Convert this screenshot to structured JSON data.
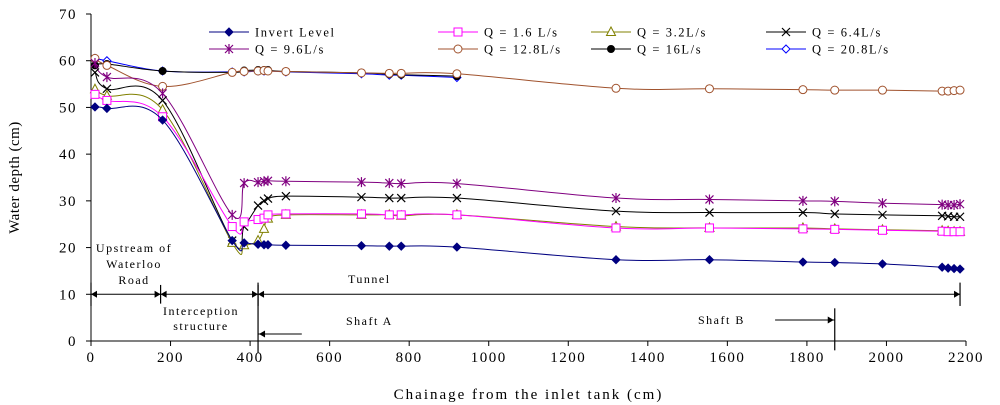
{
  "chart_data": {
    "type": "line",
    "xlabel": "Chainage from the inlet tank (cm)",
    "ylabel": "Water depth (cm)",
    "xlim": [
      0,
      2200
    ],
    "ylim": [
      0,
      70
    ],
    "xticks": [
      0,
      200,
      400,
      600,
      800,
      1000,
      1200,
      1400,
      1600,
      1800,
      2000,
      2200
    ],
    "yticks": [
      0,
      10,
      20,
      30,
      40,
      50,
      60,
      70
    ],
    "xtick_labels": [
      "0",
      "200",
      "400",
      "600",
      "800",
      "1000",
      "1200",
      "1400",
      "1600",
      "1800",
      "2000",
      "2200"
    ],
    "ytick_labels": [
      "0",
      "10",
      "20",
      "30",
      "40",
      "50",
      "60",
      "70"
    ],
    "grid": false,
    "legend_position": "top",
    "series": [
      {
        "name": "Invert Level",
        "color": "#000080",
        "marker": "filled-diamond",
        "x": [
          10,
          40,
          180,
          355,
          385,
          420,
          435,
          445,
          490,
          680,
          750,
          780,
          920,
          1320,
          1555,
          1790,
          1870,
          1990,
          2140,
          2155,
          2170,
          2185
        ],
        "y": [
          50.1,
          49.8,
          47.3,
          21.5,
          21.0,
          20.7,
          20.6,
          20.6,
          20.5,
          20.4,
          20.3,
          20.3,
          20.1,
          17.4,
          17.4,
          16.9,
          16.8,
          16.5,
          15.8,
          15.6,
          15.5,
          15.4
        ]
      },
      {
        "name": "Q = 1.6 L/s",
        "color": "#ff00ff",
        "marker": "open-square",
        "x": [
          10,
          40,
          180,
          355,
          385,
          420,
          435,
          445,
          490,
          680,
          750,
          780,
          920,
          1320,
          1555,
          1790,
          1870,
          1990,
          2140,
          2155,
          2170,
          2185
        ],
        "y": [
          52.8,
          51.5,
          48.0,
          24.5,
          25.5,
          26.0,
          26.3,
          27.0,
          27.2,
          27.2,
          27.0,
          27.0,
          27.0,
          24.2,
          24.2,
          24.0,
          23.9,
          23.7,
          23.5,
          23.4,
          23.4,
          23.4
        ]
      },
      {
        "name": "Q = 3.2L/s",
        "color": "#808000",
        "marker": "open-triangle",
        "x": [
          10,
          40,
          180,
          355,
          385,
          420,
          435,
          445,
          490,
          680,
          750,
          780,
          920,
          1320,
          1555,
          1790,
          1870,
          1990,
          2140,
          2155,
          2170,
          2185
        ],
        "y": [
          53.9,
          52.5,
          49.5,
          21.0,
          20.5,
          21.5,
          24.0,
          26.2,
          27.0,
          27.0,
          27.0,
          26.8,
          27.0,
          24.5,
          24.2,
          24.2,
          24.0,
          23.8,
          23.6,
          23.5,
          23.4,
          23.4
        ]
      },
      {
        "name": "Q = 6.4L/s",
        "color": "#000000",
        "marker": "x",
        "x": [
          10,
          40,
          180,
          355,
          385,
          420,
          435,
          445,
          490,
          680,
          750,
          780,
          920,
          1320,
          1555,
          1790,
          1870,
          1990,
          2140,
          2155,
          2170,
          2185
        ],
        "y": [
          57.5,
          54.0,
          51.5,
          21.5,
          24.5,
          29.0,
          30.0,
          30.5,
          31.0,
          30.8,
          30.6,
          30.6,
          30.6,
          27.8,
          27.5,
          27.5,
          27.2,
          27.0,
          26.8,
          26.7,
          26.6,
          26.6
        ]
      },
      {
        "name": "Q = 9.6L/s",
        "color": "#800080",
        "marker": "star",
        "x": [
          10,
          40,
          180,
          355,
          385,
          420,
          435,
          445,
          490,
          680,
          750,
          780,
          920,
          1320,
          1555,
          1790,
          1870,
          1990,
          2140,
          2155,
          2170,
          2185
        ],
        "y": [
          59.5,
          56.5,
          53.0,
          27.0,
          33.8,
          34.0,
          34.2,
          34.3,
          34.2,
          34.0,
          33.8,
          33.7,
          33.7,
          30.6,
          30.3,
          30.0,
          29.9,
          29.5,
          29.2,
          29.1,
          29.1,
          29.3
        ]
      },
      {
        "name": "Q = 12.8L/s",
        "color": "#a0522d",
        "marker": "open-circle",
        "x": [
          10,
          40,
          180,
          355,
          385,
          420,
          435,
          445,
          490,
          680,
          750,
          780,
          920,
          1320,
          1555,
          1790,
          1870,
          1990,
          2140,
          2155,
          2170,
          2185
        ],
        "y": [
          60.5,
          59.0,
          54.5,
          57.5,
          57.7,
          57.8,
          57.9,
          57.8,
          57.7,
          57.4,
          57.3,
          57.3,
          57.2,
          54.1,
          54.0,
          53.8,
          53.7,
          53.7,
          53.5,
          53.5,
          53.6,
          53.7
        ]
      },
      {
        "name": "Q = 16L/s",
        "color": "#000000",
        "marker": "filled-circle",
        "x": [
          10,
          40,
          180,
          355,
          385,
          420,
          435,
          445,
          490,
          680,
          750,
          780,
          920
        ],
        "y": [
          59.0,
          59.3,
          57.8,
          57.5,
          57.9,
          58.0,
          58.0,
          58.0,
          57.7,
          57.4,
          57.1,
          57.0,
          56.7
        ]
      },
      {
        "name": "Q = 20.8L/s",
        "color": "#0000ff",
        "marker": "open-diamond",
        "x": [
          10,
          40,
          180,
          355,
          385,
          420,
          435,
          445,
          490,
          680,
          750,
          780,
          920
        ],
        "y": [
          60.5,
          60.0,
          57.8,
          57.6,
          57.6,
          57.8,
          57.8,
          57.9,
          57.6,
          57.2,
          56.9,
          56.9,
          56.4
        ]
      }
    ],
    "annotations": {
      "upstream_label": [
        "Upstream of",
        "Waterloo",
        "Road"
      ],
      "interception_label": [
        "Interception",
        "structure"
      ],
      "tunnel_label": "Tunnel",
      "shaft_a_label": "Shaft A",
      "shaft_b_label": "Shaft B",
      "region_arrows": [
        {
          "x1": 0,
          "x2": 175,
          "y": 10
        },
        {
          "x1": 175,
          "x2": 420,
          "y": 10
        },
        {
          "x1": 420,
          "x2": 2185,
          "y": 10
        }
      ],
      "region_dividers": [
        0,
        420,
        2185
      ],
      "shaft_a_x": 420,
      "shaft_b_x": 1870
    }
  }
}
